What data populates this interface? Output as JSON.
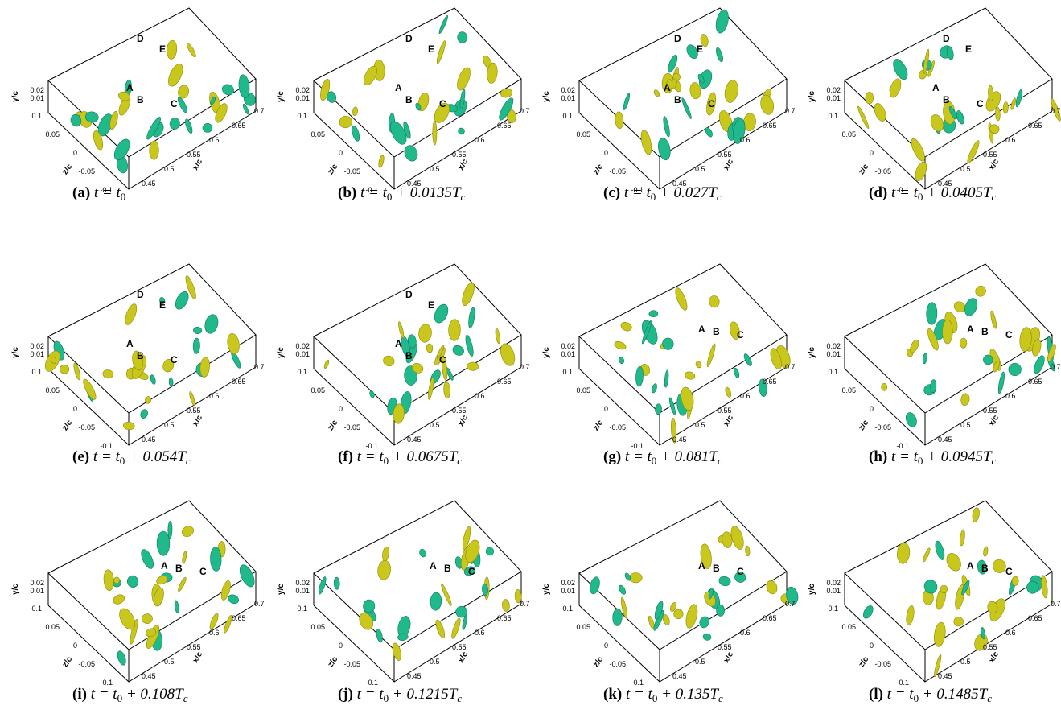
{
  "axes": {
    "y_label": "y/c",
    "y_ticks": [
      "0.02",
      "0.01"
    ],
    "z_label": "z/c",
    "z_ticks": [
      "0.1",
      "0.05",
      "0",
      "-0.05",
      "-0.1"
    ],
    "x_label": "x/c",
    "x_ticks": [
      "0.45",
      "0.5",
      "0.55",
      "0.6",
      "0.65",
      "0.7"
    ]
  },
  "panels": [
    {
      "label": "(a)",
      "caption": [
        "t = t",
        "0"
      ],
      "markers": [
        "D",
        "E",
        "A",
        "B",
        "C"
      ]
    },
    {
      "label": "(b)",
      "caption": [
        "t = t",
        "0",
        " + 0.0135T",
        "c"
      ],
      "markers": [
        "D",
        "E",
        "A",
        "B",
        "C"
      ]
    },
    {
      "label": "(c)",
      "caption": [
        "t = t",
        "0",
        " + 0.027T",
        "c"
      ],
      "markers": [
        "D",
        "E",
        "A",
        "B",
        "C"
      ]
    },
    {
      "label": "(d)",
      "caption": [
        "t = t",
        "0",
        " + 0.0405T",
        "c"
      ],
      "markers": [
        "D",
        "E",
        "A",
        "B",
        "C"
      ]
    },
    {
      "label": "(e)",
      "caption": [
        "t = t",
        "0",
        " + 0.054T",
        "c"
      ],
      "markers": [
        "D",
        "E",
        "A",
        "B",
        "C"
      ]
    },
    {
      "label": "(f)",
      "caption": [
        "t = t",
        "0",
        " + 0.0675T",
        "c"
      ],
      "markers": [
        "D",
        "E",
        "A",
        "B",
        "C"
      ]
    },
    {
      "label": "(g)",
      "caption": [
        "t = t",
        "0",
        " + 0.081T",
        "c"
      ],
      "markers": [
        "A",
        "B",
        "C"
      ]
    },
    {
      "label": "(h)",
      "caption": [
        "t = t",
        "0",
        " + 0.0945T",
        "c"
      ],
      "markers": [
        "A",
        "B",
        "C"
      ]
    },
    {
      "label": "(i)",
      "caption": [
        "t = t",
        "0",
        " + 0.108T",
        "c"
      ],
      "markers": [
        "A",
        "B",
        "C"
      ]
    },
    {
      "label": "(j)",
      "caption": [
        "t = t",
        "0",
        " + 0.1215T",
        "c"
      ],
      "markers": [
        "A",
        "B",
        "C"
      ]
    },
    {
      "label": "(k)",
      "caption": [
        "t = t",
        "0",
        " + 0.135T",
        "c"
      ],
      "markers": [
        "A",
        "B",
        "C"
      ]
    },
    {
      "label": "(l)",
      "caption": [
        "t = t",
        "0",
        " + 0.1485T",
        "c"
      ],
      "markers": [
        "A",
        "B",
        "C"
      ]
    }
  ]
}
